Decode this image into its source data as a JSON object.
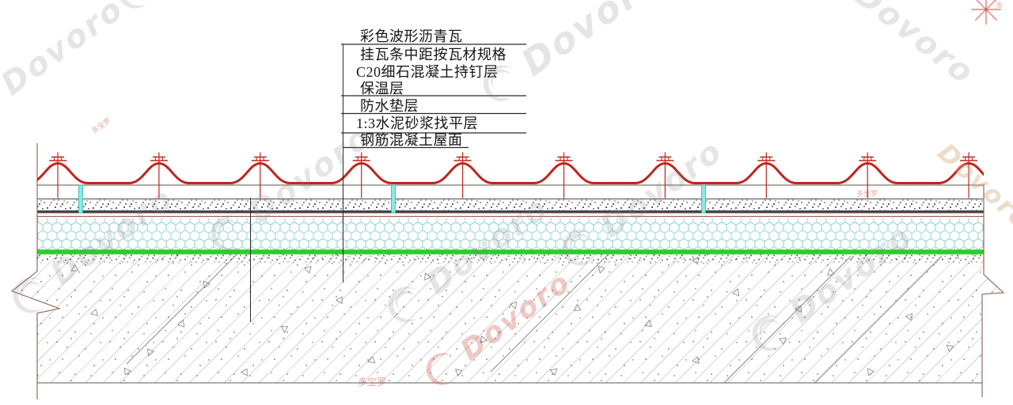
{
  "labels": {
    "items": [
      {
        "text": "彩色波形沥青瓦"
      },
      {
        "text": "挂瓦条中距按瓦材规格"
      },
      {
        "text": "C20细石混凝土持钉层"
      },
      {
        "text": "保温层"
      },
      {
        "text": "防水垫层"
      },
      {
        "text": "1:3水泥砂浆找平层"
      },
      {
        "text": "钢筋混凝土屋面"
      }
    ]
  },
  "watermark": {
    "brand": "Dovoro",
    "brand_cn": "多宝罗",
    "registered": "®"
  },
  "colors": {
    "tile_red": "#c0251b",
    "batten_cyan": "#8ce8e2",
    "batten_edge": "#2fb9b0",
    "hex_teal": "#86cfc9",
    "waterproof_green": "#2ecc2b",
    "line_dark": "#454545",
    "line_brown": "#5c5049",
    "maroon_line": "#9c4f45",
    "break_edge": "#8a5f52",
    "leader_dark": "#2a2a2a"
  }
}
